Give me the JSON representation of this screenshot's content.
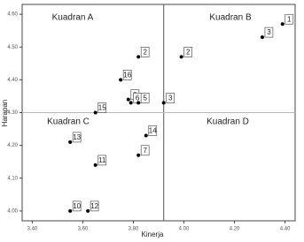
{
  "chart_data": {
    "type": "scatter",
    "x_label": "Kinerja",
    "y_label": "Harapan",
    "xlim": [
      3.36,
      4.44
    ],
    "ylim": [
      3.97,
      4.63
    ],
    "xticks": [
      {
        "value": 3.4,
        "label": "3.40"
      },
      {
        "value": 3.6,
        "label": "3.60"
      },
      {
        "value": 3.8,
        "label": "3.80"
      },
      {
        "value": 4.0,
        "label": "4.00"
      },
      {
        "value": 4.2,
        "label": "4.20"
      },
      {
        "value": 4.4,
        "label": "4.40"
      }
    ],
    "yticks": [
      {
        "value": 4.0,
        "label": "4.00"
      },
      {
        "value": 4.1,
        "label": "4.10"
      },
      {
        "value": 4.2,
        "label": "4.20"
      },
      {
        "value": 4.3,
        "label": "4.30"
      },
      {
        "value": 4.4,
        "label": "4.40"
      },
      {
        "value": 4.5,
        "label": "4.50"
      },
      {
        "value": 4.6,
        "label": "4.60"
      }
    ],
    "x_reference": 3.92,
    "y_reference": 4.3,
    "quadrant_labels": [
      "Kuadran A",
      "Kuadran B",
      "Kuadran C",
      "Kuadran D"
    ],
    "labels": [
      "1",
      "3",
      "2",
      "2",
      "16",
      "8",
      "15",
      "6",
      "5",
      "3",
      "13",
      "14",
      "11",
      "7",
      "12",
      "10"
    ],
    "x": [
      4.39,
      4.31,
      3.99,
      3.82,
      3.75,
      3.78,
      3.65,
      3.79,
      3.82,
      3.92,
      3.55,
      3.85,
      3.65,
      3.82,
      3.62,
      3.55
    ],
    "values": [
      4.57,
      4.53,
      4.47,
      4.47,
      4.4,
      4.34,
      4.3,
      4.33,
      4.33,
      4.33,
      4.21,
      4.23,
      4.14,
      4.17,
      4.0,
      4.0
    ],
    "color": "#000000"
  }
}
